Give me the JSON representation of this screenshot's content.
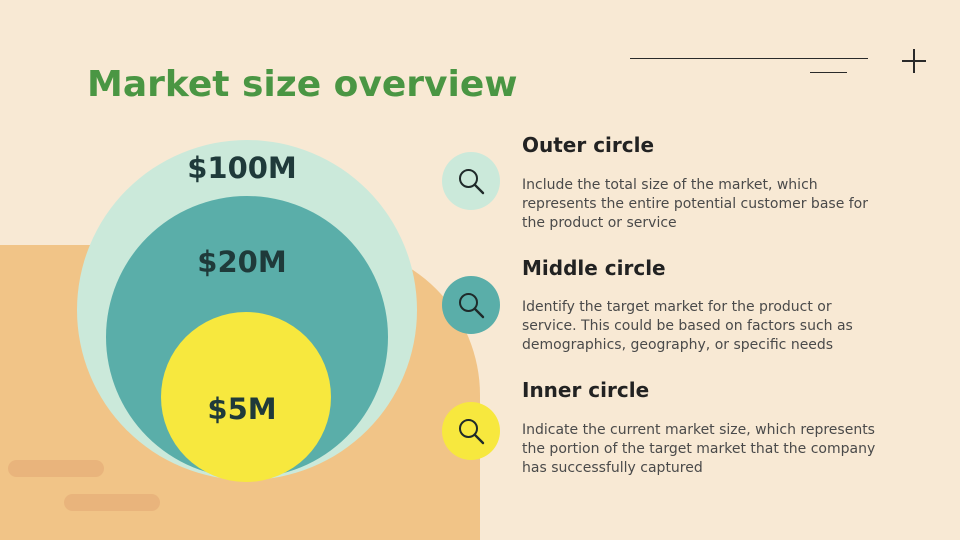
{
  "title": "Market size overview",
  "colors": {
    "background": "#f8e9d4",
    "accent_shape": "#f1c487",
    "title": "#4a9643",
    "outer": "#cbe9da",
    "middle": "#5aaea9",
    "inner": "#f7e83e"
  },
  "circles": {
    "outer": {
      "value": "$100M"
    },
    "middle": {
      "value": "$20M"
    },
    "inner": {
      "value": "$5M"
    }
  },
  "items": [
    {
      "heading": "Outer circle",
      "description": "Include the total size of the market, which represents the entire potential customer base for the product or service",
      "icon": "search-icon"
    },
    {
      "heading": "Middle circle",
      "description": "Identify the target market for the product or service. This could be based on factors such as demographics, geography, or specific needs",
      "icon": "search-icon"
    },
    {
      "heading": "Inner circle",
      "description": "Indicate the current market size, which represents the portion of the target market that the company has successfully captured",
      "icon": "search-icon"
    }
  ]
}
